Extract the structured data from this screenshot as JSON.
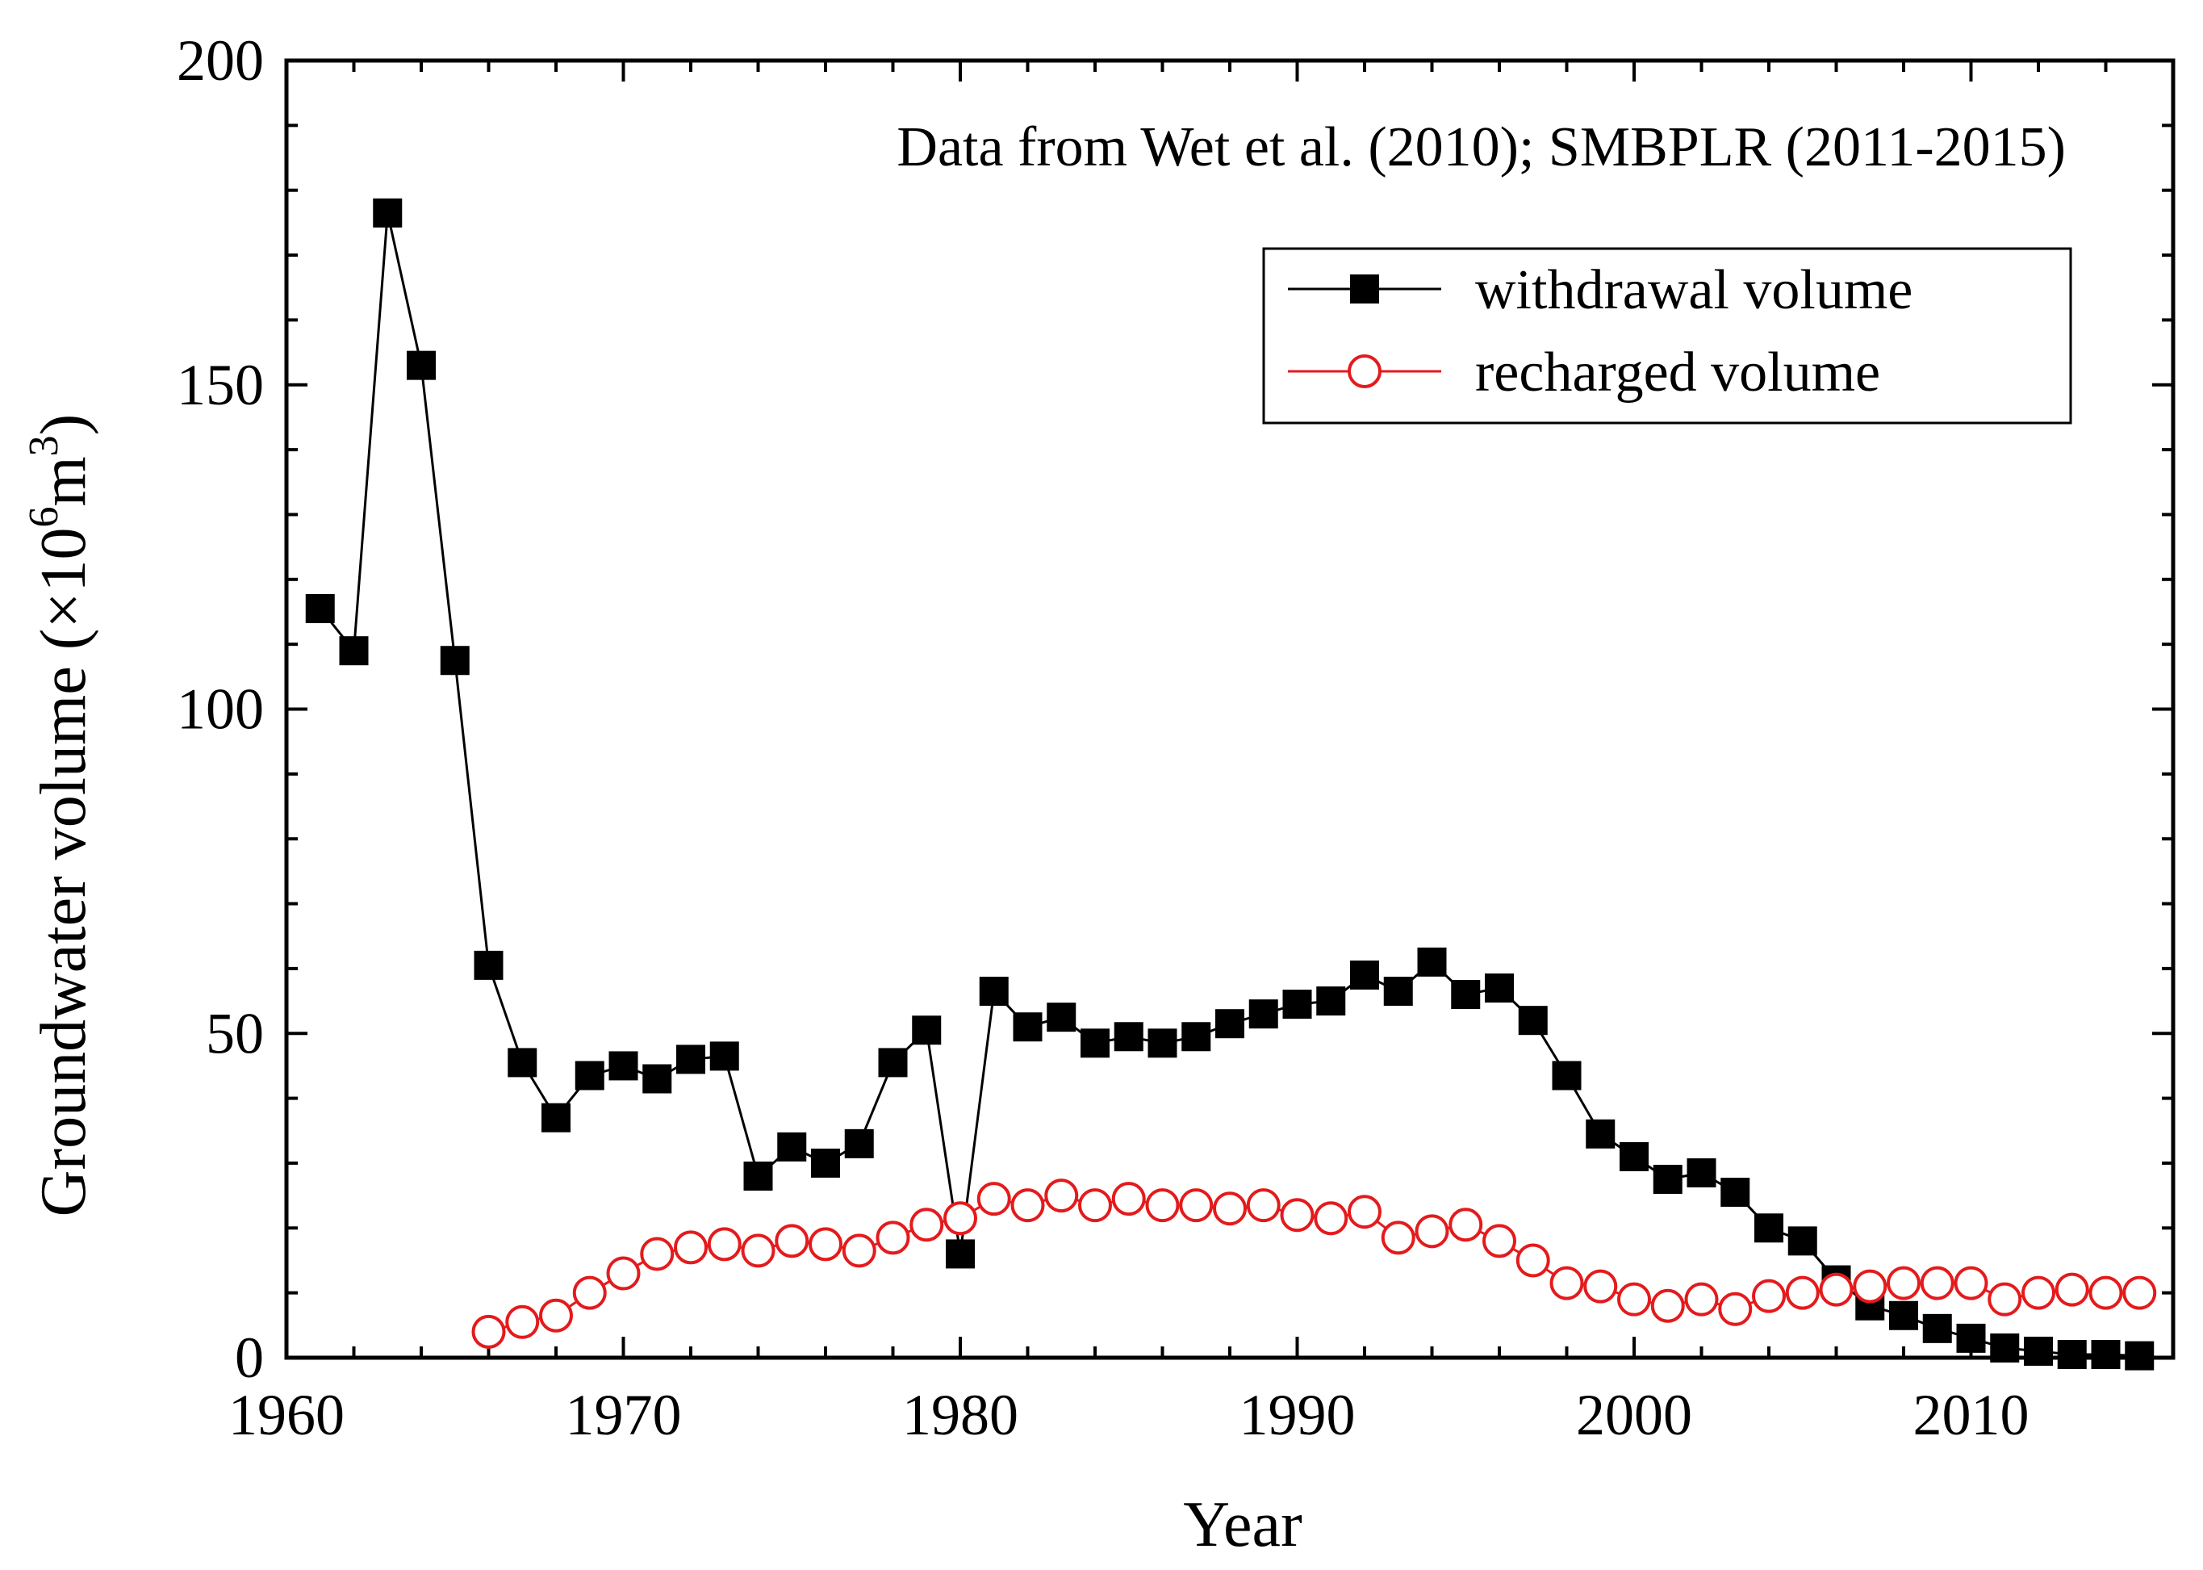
{
  "chart_data": {
    "type": "line",
    "title": "",
    "annotation": "Data from Wet et al. (2010); SMBPLR (2011-2015)",
    "xlabel": "Year",
    "ylabel": {
      "prefix": "Groundwater volume (×10",
      "sup1": "6",
      "mid": "m",
      "sup2": "3",
      "suffix": ")"
    },
    "xlim": [
      1960,
      2016
    ],
    "ylim": [
      0,
      200
    ],
    "xticks": [
      1960,
      1970,
      1980,
      1990,
      2000,
      2010
    ],
    "yticks": [
      0,
      50,
      100,
      150,
      200
    ],
    "legend_position": "top-right",
    "series": [
      {
        "name": "withdrawal volume",
        "marker": "filled-square",
        "color": "#000000",
        "points": [
          [
            1961,
            115.5
          ],
          [
            1962,
            109
          ],
          [
            1963,
            176.5
          ],
          [
            1964,
            153
          ],
          [
            1965,
            107.5
          ],
          [
            1966,
            60.5
          ],
          [
            1967,
            45.5
          ],
          [
            1968,
            37
          ],
          [
            1969,
            43.5
          ],
          [
            1970,
            45
          ],
          [
            1971,
            43
          ],
          [
            1972,
            46
          ],
          [
            1973,
            46.5
          ],
          [
            1974,
            28
          ],
          [
            1975,
            32.5
          ],
          [
            1976,
            30
          ],
          [
            1977,
            33
          ],
          [
            1978,
            45.5
          ],
          [
            1979,
            50.5
          ],
          [
            1980,
            16
          ],
          [
            1981,
            56.5
          ],
          [
            1982,
            51
          ],
          [
            1983,
            52.5
          ],
          [
            1984,
            48.5
          ],
          [
            1985,
            49.5
          ],
          [
            1986,
            48.5
          ],
          [
            1987,
            49.5
          ],
          [
            1988,
            51.5
          ],
          [
            1989,
            53
          ],
          [
            1990,
            54.5
          ],
          [
            1991,
            55
          ],
          [
            1992,
            59
          ],
          [
            1993,
            56.5
          ],
          [
            1994,
            61
          ],
          [
            1995,
            56
          ],
          [
            1996,
            57
          ],
          [
            1997,
            52
          ],
          [
            1998,
            43.5
          ],
          [
            1999,
            34.5
          ],
          [
            2000,
            31
          ],
          [
            2001,
            27.5
          ],
          [
            2002,
            28.5
          ],
          [
            2003,
            25.5
          ],
          [
            2004,
            20
          ],
          [
            2005,
            18
          ],
          [
            2006,
            12
          ],
          [
            2007,
            8
          ],
          [
            2008,
            6.5
          ],
          [
            2009,
            4.5
          ],
          [
            2010,
            3
          ],
          [
            2011,
            1.5
          ],
          [
            2012,
            1
          ],
          [
            2013,
            0.5
          ],
          [
            2014,
            0.5
          ],
          [
            2015,
            0.3
          ]
        ]
      },
      {
        "name": "recharged volume",
        "marker": "open-circle",
        "color": "#e41a1c",
        "points": [
          [
            1966,
            4
          ],
          [
            1967,
            5.5
          ],
          [
            1968,
            6.5
          ],
          [
            1969,
            10
          ],
          [
            1970,
            13
          ],
          [
            1971,
            16
          ],
          [
            1972,
            17
          ],
          [
            1973,
            17.5
          ],
          [
            1974,
            16.5
          ],
          [
            1975,
            18
          ],
          [
            1976,
            17.5
          ],
          [
            1977,
            16.5
          ],
          [
            1978,
            18.5
          ],
          [
            1979,
            20.5
          ],
          [
            1980,
            21.5
          ],
          [
            1981,
            24.5
          ],
          [
            1982,
            23.5
          ],
          [
            1983,
            25
          ],
          [
            1984,
            23.5
          ],
          [
            1985,
            24.5
          ],
          [
            1986,
            23.5
          ],
          [
            1987,
            23.5
          ],
          [
            1988,
            23
          ],
          [
            1989,
            23.5
          ],
          [
            1990,
            22
          ],
          [
            1991,
            21.5
          ],
          [
            1992,
            22.5
          ],
          [
            1993,
            18.5
          ],
          [
            1994,
            19.5
          ],
          [
            1995,
            20.5
          ],
          [
            1996,
            18
          ],
          [
            1997,
            15
          ],
          [
            1998,
            11.5
          ],
          [
            1999,
            11
          ],
          [
            2000,
            9
          ],
          [
            2001,
            8
          ],
          [
            2002,
            9
          ],
          [
            2003,
            7.5
          ],
          [
            2004,
            9.5
          ],
          [
            2005,
            10
          ],
          [
            2006,
            10.5
          ],
          [
            2007,
            11
          ],
          [
            2008,
            11.5
          ],
          [
            2009,
            11.5
          ],
          [
            2010,
            11.5
          ],
          [
            2011,
            9
          ],
          [
            2012,
            10
          ],
          [
            2013,
            10.5
          ],
          [
            2014,
            10
          ],
          [
            2015,
            10
          ]
        ]
      }
    ]
  }
}
